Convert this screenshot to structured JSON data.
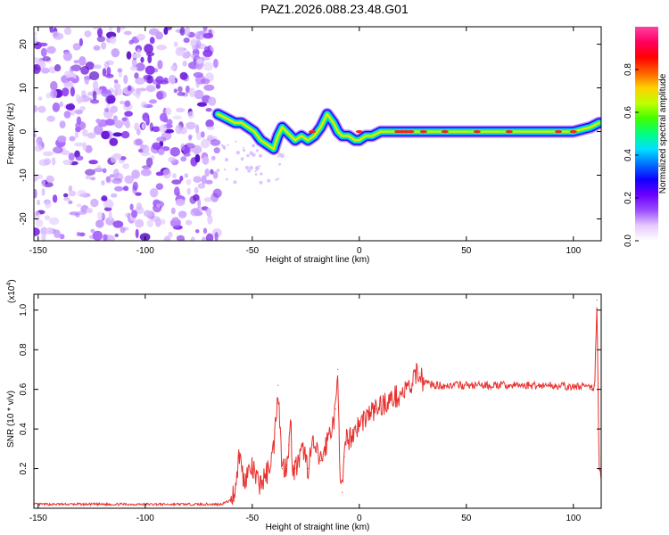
{
  "page": {
    "title": "PAZ1.2026.088.23.48.G01"
  },
  "chart_data": [
    {
      "type": "heatmap",
      "title": "PAZ1.2026.088.23.48.G01",
      "xlabel": "Height of straight line (km)",
      "ylabel": "Frequency (Hz)",
      "xlim": [
        -152,
        113
      ],
      "ylim": [
        -25,
        24
      ],
      "xticks": [
        -150,
        -100,
        -50,
        0,
        50,
        100
      ],
      "yticks": [
        20,
        10,
        0,
        -10,
        -20
      ],
      "grid": false,
      "noise_region_x": [
        -152,
        -66
      ],
      "signal_ridge": {
        "x": [
          -66,
          -62,
          -58,
          -55,
          -52,
          -49,
          -46,
          -43,
          -40,
          -38,
          -36,
          -34,
          -32,
          -30,
          -27,
          -24,
          -21,
          -18,
          -15,
          -12,
          -10,
          -8,
          -5,
          -2,
          0,
          3,
          6,
          10,
          20,
          30,
          50,
          80,
          100,
          108,
          112
        ],
        "y": [
          4,
          3,
          2,
          2,
          1,
          0,
          -2,
          -3,
          -4,
          -1,
          1,
          0,
          -1,
          -2,
          -1,
          -2,
          -1,
          1,
          4,
          2,
          0,
          -1,
          -1,
          -2,
          -2,
          -1,
          -1,
          0,
          0,
          0,
          0,
          0,
          0,
          1,
          2
        ]
      },
      "colorbar": {
        "label": "Normalized spectral amplitude",
        "ticks": [
          0.0,
          0.2,
          0.4,
          0.6,
          0.8
        ],
        "range": [
          0,
          1
        ],
        "colormap": [
          "#ffffff",
          "#e6c9ff",
          "#9a4cff",
          "#6a00ff",
          "#1000ff",
          "#0070ff",
          "#00e0ff",
          "#00ff80",
          "#40ff00",
          "#c0ff00",
          "#ffd000",
          "#ff6000",
          "#ff0000",
          "#ff0060",
          "#ff40a0"
        ]
      }
    },
    {
      "type": "line",
      "xlabel": "Height of straight line (km)",
      "ylabel": "SNR (10 * v/v)",
      "multiplier_label": "(x10",
      "multiplier_exp": "4",
      "multiplier_close": ")",
      "xlim": [
        -152,
        113
      ],
      "ylim": [
        0,
        1.08
      ],
      "xticks": [
        -150,
        -100,
        -50,
        0,
        50,
        100
      ],
      "yticks": [
        0.2,
        0.4,
        0.6,
        0.8,
        1.0
      ],
      "grid": false,
      "series": [
        {
          "color": "#e8312f",
          "x": [
            -152,
            -120,
            -80,
            -65,
            -60,
            -58,
            -56,
            -54,
            -52,
            -50,
            -47,
            -45,
            -43,
            -40,
            -38,
            -36,
            -34,
            -33,
            -32,
            -31,
            -30,
            -28,
            -26,
            -24,
            -22,
            -20,
            -18,
            -16,
            -14,
            -12,
            -11,
            -10,
            -9,
            -8,
            -7,
            -6,
            -4,
            -2,
            0,
            2,
            5,
            8,
            10,
            15,
            20,
            25,
            27,
            28,
            30,
            35,
            40,
            50,
            60,
            70,
            80,
            90,
            100,
            105,
            108,
            110,
            111,
            112,
            113
          ],
          "y": [
            0.02,
            0.02,
            0.02,
            0.02,
            0.04,
            0.1,
            0.28,
            0.14,
            0.18,
            0.2,
            0.12,
            0.14,
            0.18,
            0.3,
            0.62,
            0.2,
            0.22,
            0.32,
            0.42,
            0.18,
            0.2,
            0.24,
            0.3,
            0.2,
            0.32,
            0.28,
            0.24,
            0.3,
            0.38,
            0.44,
            0.5,
            0.7,
            0.2,
            0.08,
            0.26,
            0.34,
            0.36,
            0.4,
            0.42,
            0.45,
            0.48,
            0.5,
            0.52,
            0.55,
            0.58,
            0.62,
            0.7,
            0.68,
            0.64,
            0.62,
            0.62,
            0.62,
            0.62,
            0.62,
            0.62,
            0.62,
            0.61,
            0.62,
            0.6,
            0.62,
            1.05,
            0.2,
            0.16
          ]
        }
      ]
    }
  ]
}
